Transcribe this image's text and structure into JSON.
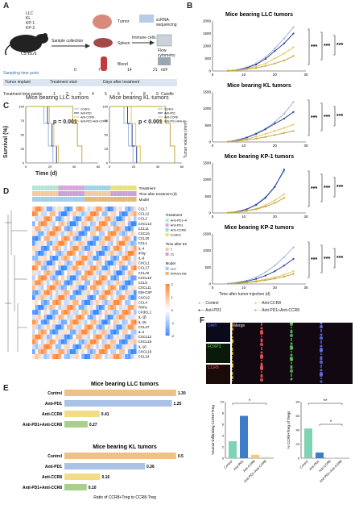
{
  "panels": {
    "A": "A",
    "B": "B",
    "C": "C",
    "D": "D",
    "E": "E",
    "F": "F"
  },
  "panelA": {
    "models": [
      "LLC",
      "KL",
      "KP-1",
      "KP-2"
    ],
    "strain": "C57BL/6",
    "sample_collection": "Sample collection",
    "immune_cells": "Immune cells",
    "organs": [
      "Tumor",
      "Spleen",
      "Blood"
    ],
    "assays": [
      "scRNA-sequencing",
      "Flow cytometry",
      "mIF"
    ],
    "sampling_label": "Sampling time point",
    "timeline": {
      "implant": "Tumor implant",
      "start": "Treatment start",
      "after": "Days after treatment",
      "cutoff": "Cutoffs"
    },
    "sample_days": [
      "0",
      "7",
      "14",
      "21"
    ],
    "treatment_label": "Treatment time points",
    "treatment_numbers": [
      "1",
      "2",
      "3",
      "4",
      "5",
      "6",
      "7",
      "8",
      "9"
    ]
  },
  "panelB": {
    "titles": [
      "Mice bearing LLC tumors",
      "Mice bearing KL tumors",
      "Mice bearing KP-1 tumors",
      "Mice bearing KP-2 tumors"
    ],
    "ylabel": "Tumor volume (mm³)",
    "xlabel": "Time after tumor injection (d)",
    "sig": "***",
    "legend": [
      "Control",
      "Anti-PD1",
      "Anti-CCR8",
      "Anti-PD1+Anti-CCR8"
    ],
    "colors": [
      "#9cb6da",
      "#2b3f9a",
      "#e6c45c",
      "#c6a53a"
    ],
    "charts": [
      {
        "ticks_y": [
          "0",
          "500",
          "1000",
          "1500",
          "2000"
        ],
        "ticks_x": [
          "0",
          "10",
          "20",
          "30"
        ],
        "ymax": 2000,
        "xmax": 30,
        "x": [
          5,
          8,
          11,
          14,
          17,
          20,
          23,
          26
        ],
        "series": [
          [
            10,
            50,
            150,
            300,
            550,
            900,
            1300,
            1750
          ],
          [
            10,
            40,
            120,
            260,
            480,
            800,
            1100,
            1500
          ],
          [
            10,
            35,
            90,
            180,
            300,
            500,
            700,
            950
          ],
          [
            10,
            30,
            70,
            120,
            200,
            300,
            420,
            600
          ]
        ]
      },
      {
        "ticks_y": [
          "0",
          "500",
          "1000",
          "1500"
        ],
        "ticks_x": [
          "0",
          "10",
          "20",
          "30"
        ],
        "ymax": 1500,
        "xmax": 30,
        "x": [
          5,
          8,
          11,
          14,
          17,
          20,
          23,
          26
        ],
        "series": [
          [
            10,
            60,
            140,
            260,
            400,
            600,
            850,
            1200
          ],
          [
            10,
            55,
            130,
            240,
            380,
            550,
            700,
            900
          ],
          [
            10,
            40,
            90,
            160,
            240,
            330,
            420,
            520
          ],
          [
            10,
            30,
            60,
            100,
            150,
            210,
            270,
            330
          ]
        ]
      },
      {
        "ticks_y": [
          "0",
          "500",
          "1000",
          "1500"
        ],
        "ticks_x": [
          "0",
          "10",
          "20",
          "30"
        ],
        "ymax": 1500,
        "xmax": 30,
        "x": [
          5,
          8,
          11,
          14,
          17,
          20,
          23
        ],
        "series": [
          [
            10,
            40,
            120,
            260,
            480,
            800,
            1250
          ],
          [
            10,
            40,
            110,
            240,
            450,
            780,
            1300
          ],
          [
            10,
            30,
            70,
            130,
            230,
            380,
            560
          ],
          [
            10,
            25,
            60,
            110,
            190,
            300,
            450
          ]
        ]
      },
      {
        "ticks_y": [
          "0",
          "500",
          "1000",
          "1500"
        ],
        "ticks_x": [
          "0",
          "10",
          "20",
          "30"
        ],
        "ymax": 1500,
        "xmax": 30,
        "x": [
          5,
          8,
          11,
          14,
          17,
          20,
          23,
          26
        ],
        "series": [
          [
            10,
            40,
            100,
            200,
            350,
            550,
            800,
            1100
          ],
          [
            10,
            35,
            80,
            150,
            250,
            380,
            550,
            750
          ],
          [
            10,
            25,
            50,
            90,
            140,
            200,
            280,
            380
          ],
          [
            10,
            20,
            40,
            70,
            110,
            160,
            220,
            300
          ]
        ]
      }
    ]
  },
  "panelC": {
    "titles": [
      "Mice bearing LLC tumors",
      "Mice bearing KL tumors"
    ],
    "ylabel": "Survival (%)",
    "xlabel": "Time (d)",
    "pvalues": [
      "p = 0.001",
      "p < 0.001"
    ],
    "legend": [
      "Control",
      "Anti-PD1",
      "Anti-CCR8",
      "Anti-PD1+Anti-CCR8"
    ],
    "ticks_y": [
      "0",
      "25",
      "50",
      "75",
      "100"
    ],
    "ticks_x": [
      "0",
      "20",
      "40",
      "60"
    ]
  },
  "panelD": {
    "annotations": [
      "Treatment",
      "Time after treatment (d)",
      "Model"
    ],
    "genes": [
      "CCL7",
      "CCL12",
      "CCL2",
      "CXCL13",
      "CCL11",
      "CXCL5",
      "CCL20",
      "CCL1",
      "IL-4",
      "IFNγ",
      "IL-6",
      "CXCL1",
      "CCL17",
      "CCL22",
      "CXCL10",
      "CCL5",
      "CXCL11",
      "GM-CSF",
      "CXCL9",
      "CCL4",
      "TNFα",
      "CX3CL1",
      "IL-1β",
      "IL-16",
      "CCL27",
      "IL-2",
      "CXCL12",
      "CXCL15",
      "IL-10",
      "CXCL16",
      "CCL24"
    ],
    "legend_treatment_title": "Treatment",
    "legend_treatment": [
      "Anti-PD1+Anti-CCR8",
      "Anti-PD1",
      "Anti-CCR8",
      "Control"
    ],
    "legend_time_title": "Time after treatment (d)",
    "legend_time": [
      "7",
      "21"
    ],
    "legend_model_title": "Model",
    "legend_model": [
      "LLC",
      "KRAS/LKB1"
    ],
    "scale_ticks": [
      "2",
      "1",
      "0",
      "-1",
      "-2"
    ]
  },
  "panelE": {
    "chart_data": [
      {
        "type": "bar",
        "title": "Mice bearing LLC tumors",
        "categories": [
          "Control",
          "Anti-PD1",
          "Anti-CCR8",
          "Anti-PD1+Anti-CCR8"
        ],
        "values": [
          1.3,
          1.25,
          0.41,
          0.27
        ],
        "labels": [
          "1.30",
          "1.25",
          "0.41",
          "0.27"
        ]
      },
      {
        "type": "bar",
        "title": "Mice bearing KL tumors",
        "categories": [
          "Control",
          "Anti-PD1",
          "Anti-CCR8",
          "Anti-PD1+Anti-CCR8"
        ],
        "values": [
          0.5,
          0.36,
          0.16,
          0.1
        ],
        "labels": [
          "0.5",
          "0.36",
          "0.16",
          "0.10"
        ],
        "xlabel": "Ratio of CCR8+Treg to CCR8-Treg"
      }
    ],
    "colors": [
      "#f0c089",
      "#a9c2e6",
      "#f3dd84",
      "#a9cf8c"
    ]
  },
  "panelF": {
    "image_labels": [
      "DAPI",
      "FOXP3",
      "CCR8",
      "Merge"
    ],
    "bar1": {
      "ylabel": "%tumor-infiltrating CCR8+Treg",
      "categories": [
        "Control",
        "Anti-PD1",
        "Anti-CCR8",
        "Anti-PD1+Anti-CCR8"
      ],
      "values": [
        3,
        7.5,
        0.6,
        0.2
      ],
      "ymax": 10,
      "ticks": [
        "0",
        "2",
        "4",
        "6",
        "8",
        "10"
      ],
      "sig": "*"
    },
    "bar2": {
      "ylabel": "% CCR8+Treg of Tregs",
      "categories": [
        "Control",
        "Anti-PD1",
        "Anti-CCR8",
        "Anti-PD1+Anti-CCR8"
      ],
      "values": [
        42,
        8,
        0.5,
        0.3
      ],
      "ymax": 80,
      "ticks": [
        "0",
        "20",
        "40",
        "60",
        "80"
      ],
      "sig": "**",
      "sig2": "*"
    },
    "bar_colors": [
      "#7ed3b2",
      "#3f7cc9",
      "#f3c97a",
      "#c8e09a"
    ]
  }
}
